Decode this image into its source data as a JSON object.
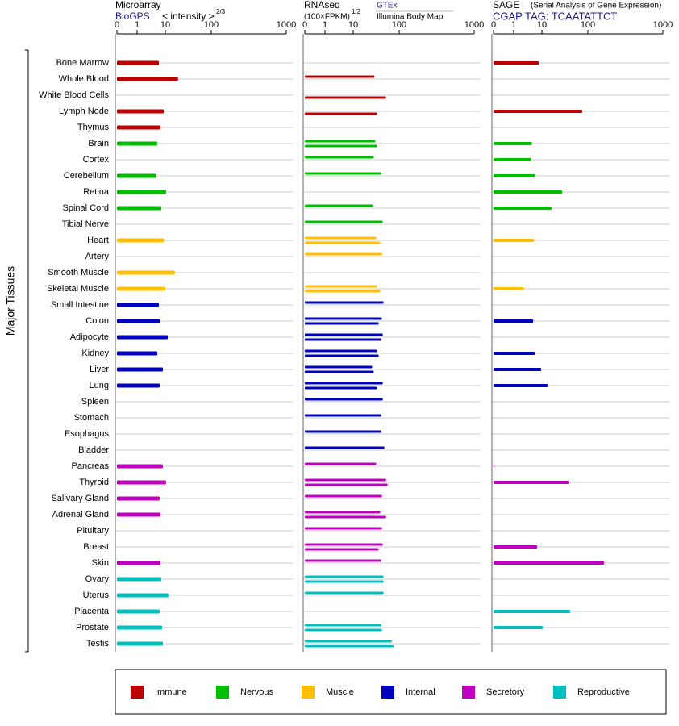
{
  "chart_data": {
    "type": "bar",
    "y_label": "Major Tissues",
    "groups": [
      {
        "name": "Immune",
        "color": "#bf0000",
        "categories": [
          "Bone Marrow",
          "Whole Blood",
          "White Blood Cells",
          "Lymph Node",
          "Thymus"
        ]
      },
      {
        "name": "Nervous",
        "color": "#00bf00",
        "categories": [
          "Brain",
          "Cortex",
          "Cerebellum",
          "Retina",
          "Spinal Cord",
          "Tibial Nerve"
        ]
      },
      {
        "name": "Muscle",
        "color": "#ffbf00",
        "categories": [
          "Heart",
          "Artery",
          "Smooth Muscle",
          "Skeletal Muscle"
        ]
      },
      {
        "name": "Internal",
        "color": "#0000bf",
        "categories": [
          "Small Intestine",
          "Colon",
          "Adipocyte",
          "Kidney",
          "Liver",
          "Lung",
          "Spleen",
          "Stomach",
          "Esophagus",
          "Bladder"
        ]
      },
      {
        "name": "Secretory",
        "color": "#bf00bf",
        "categories": [
          "Pancreas",
          "Thyroid",
          "Salivary Gland",
          "Adrenal Gland",
          "Pituitary",
          "Breast",
          "Skin"
        ]
      },
      {
        "name": "Reproductive",
        "color": "#00bfbf",
        "categories": [
          "Ovary",
          "Uterus",
          "Placenta",
          "Prostate",
          "Testis"
        ]
      }
    ],
    "panels": [
      {
        "title": "Microarray",
        "unit": "< intensity >",
        "unit_exponent": "2/3",
        "xlim": [
          0,
          1000
        ],
        "xticks": [
          0,
          1,
          10,
          100,
          1000
        ],
        "series": [
          {
            "name": "BioGPS",
            "values": [
              5.9,
              18.9,
              null,
              8.8,
              6.7,
              5.2,
              null,
              4.8,
              10.4,
              7.2,
              null,
              8.8,
              null,
              16.1,
              10,
              5.9,
              6.3,
              11.3,
              5.2,
              8.2,
              6.3,
              null,
              null,
              null,
              null,
              8.2,
              10.4,
              6.3,
              6.7,
              null,
              null,
              6.7,
              7.2,
              11.7,
              6.3,
              7.7,
              8.2
            ]
          }
        ]
      },
      {
        "title": "RNAseq",
        "unit": "(100×FPKM)",
        "unit_exponent": "1/2",
        "xlim": [
          0,
          1000
        ],
        "xticks": [
          0,
          1,
          10,
          100,
          1000
        ],
        "series": [
          {
            "name": "GTEx",
            "values": [
              null,
              29.1,
              null,
              null,
              null,
              30.3,
              27.9,
              40.5,
              null,
              26.8,
              44,
              31.6,
              42.2,
              null,
              33,
              45.8,
              42.2,
              44,
              33,
              25.8,
              44,
              44,
              40.5,
              40.5,
              47.7,
              31.6,
              51.8,
              42.2,
              38.8,
              42.2,
              44,
              40.5,
              45.8,
              45.8,
              null,
              40.5,
              69
            ]
          },
          {
            "name": "Illumina Body Map",
            "values": [
              null,
              null,
              51.8,
              33,
              null,
              33,
              null,
              null,
              null,
              null,
              null,
              38.8,
              null,
              null,
              38.8,
              null,
              35.8,
              40.5,
              35.8,
              27.9,
              33,
              null,
              null,
              null,
              null,
              null,
              56.2,
              null,
              51.8,
              null,
              35.8,
              null,
              45.8,
              null,
              null,
              42.2,
              75
            ]
          }
        ]
      },
      {
        "title": "SAGE",
        "subtitle": "(Serial Analysis of Gene Expression)",
        "xlim": [
          0,
          1000
        ],
        "xticks": [
          0,
          1,
          10,
          100,
          1000
        ],
        "series": [
          {
            "name": "CGAP TAG: TCAATATTCT",
            "values": [
              7.7,
              null,
              null,
              75.4,
              null,
              4.4,
              4.1,
              5.6,
              27.5,
              16.2,
              null,
              5.3,
              null,
              null,
              2.3,
              null,
              4.9,
              null,
              5.6,
              9.4,
              13.3,
              null,
              null,
              null,
              null,
              0.04,
              37.9,
              null,
              null,
              null,
              6.8,
              165,
              null,
              null,
              41.1,
              10.4,
              null
            ]
          }
        ]
      }
    ]
  }
}
